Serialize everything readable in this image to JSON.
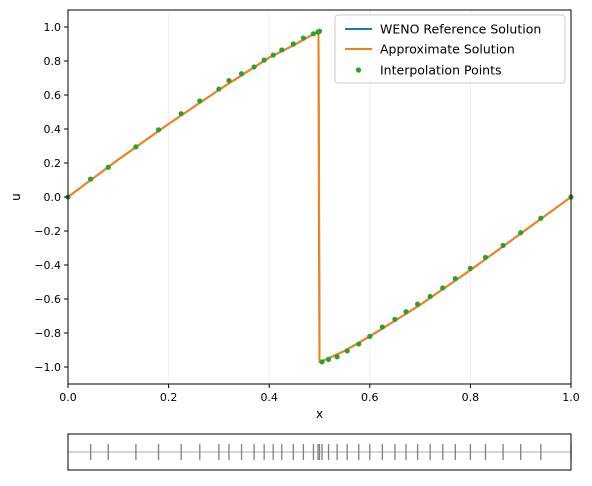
{
  "chart_data": [
    {
      "type": "line",
      "xlabel": "x",
      "ylabel": "u",
      "xlim": [
        0,
        1
      ],
      "ylim": [
        -1.1,
        1.1
      ],
      "xticks": [
        "0.0",
        "0.2",
        "0.4",
        "0.6",
        "0.8",
        "1.0"
      ],
      "yticks": [
        "−1.0",
        "−0.8",
        "−0.6",
        "−0.4",
        "−0.2",
        "0.0",
        "0.2",
        "0.4",
        "0.6",
        "0.8",
        "1.0"
      ],
      "grid": "vertical, faint",
      "legend_position": "top-right",
      "series": [
        {
          "name": "WENO Reference Solution",
          "color": "#1f77b4",
          "style": "line",
          "x": [
            0.0,
            0.1,
            0.2,
            0.3,
            0.4,
            0.45,
            0.498,
            0.5,
            0.502,
            0.55,
            0.6,
            0.7,
            0.8,
            0.9,
            1.0
          ],
          "y": [
            0.0,
            0.22,
            0.43,
            0.63,
            0.82,
            0.895,
            0.975,
            -0.97,
            -0.97,
            -0.905,
            -0.82,
            -0.635,
            -0.43,
            -0.215,
            0.0
          ]
        },
        {
          "name": "Approximate Solution",
          "color": "#ff7f0e",
          "style": "line",
          "x": [
            0.0,
            0.1,
            0.2,
            0.3,
            0.4,
            0.45,
            0.498,
            0.5,
            0.502,
            0.55,
            0.6,
            0.7,
            0.8,
            0.9,
            1.0
          ],
          "y": [
            0.0,
            0.22,
            0.43,
            0.63,
            0.82,
            0.895,
            0.975,
            -0.97,
            -0.97,
            -0.905,
            -0.82,
            -0.635,
            -0.43,
            -0.215,
            0.0
          ]
        },
        {
          "name": "Interpolation Points",
          "color": "#2ca02c",
          "style": "points",
          "x": [
            0.0,
            0.045,
            0.08,
            0.135,
            0.18,
            0.225,
            0.262,
            0.3,
            0.32,
            0.345,
            0.37,
            0.39,
            0.408,
            0.425,
            0.448,
            0.468,
            0.488,
            0.497,
            0.5,
            0.505,
            0.518,
            0.535,
            0.555,
            0.578,
            0.6,
            0.625,
            0.65,
            0.672,
            0.695,
            0.72,
            0.745,
            0.77,
            0.8,
            0.83,
            0.865,
            0.9,
            0.94,
            1.0
          ],
          "y": [
            0.0,
            0.105,
            0.175,
            0.295,
            0.395,
            0.49,
            0.565,
            0.635,
            0.685,
            0.725,
            0.765,
            0.805,
            0.835,
            0.865,
            0.9,
            0.935,
            0.96,
            0.97,
            0.975,
            -0.97,
            -0.955,
            -0.94,
            -0.905,
            -0.865,
            -0.82,
            -0.765,
            -0.72,
            -0.675,
            -0.63,
            -0.585,
            -0.535,
            -0.48,
            -0.42,
            -0.355,
            -0.285,
            -0.21,
            -0.125,
            0.0
          ]
        }
      ]
    },
    {
      "type": "scatter",
      "xlim": [
        0,
        1
      ],
      "marks": "vertical ticks",
      "x": [
        0.045,
        0.08,
        0.135,
        0.18,
        0.225,
        0.262,
        0.3,
        0.32,
        0.345,
        0.37,
        0.39,
        0.408,
        0.425,
        0.448,
        0.468,
        0.488,
        0.497,
        0.5,
        0.505,
        0.518,
        0.535,
        0.555,
        0.578,
        0.6,
        0.625,
        0.65,
        0.672,
        0.695,
        0.72,
        0.745,
        0.77,
        0.8,
        0.83,
        0.865,
        0.9,
        0.94,
        1.0
      ]
    }
  ]
}
